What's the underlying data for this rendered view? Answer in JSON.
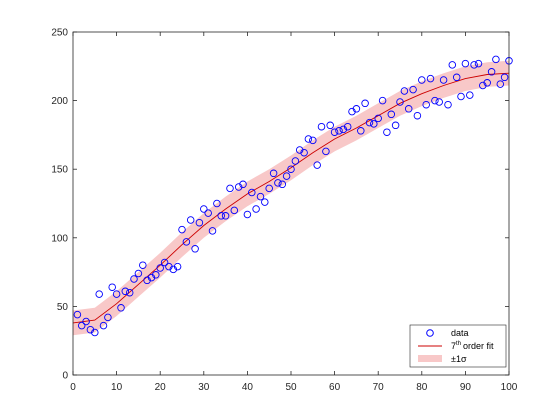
{
  "chart_data": {
    "type": "scatter",
    "xlim": [
      0,
      100
    ],
    "ylim": [
      0,
      250
    ],
    "x_ticks": [
      0,
      10,
      20,
      30,
      40,
      50,
      60,
      70,
      80,
      90,
      100
    ],
    "y_ticks": [
      0,
      50,
      100,
      150,
      200,
      250
    ],
    "grid": false,
    "legend_position": "bottom-right",
    "colors": {
      "data": "#0000ff",
      "fit": "#cc0000",
      "band": "#f8c8c8"
    },
    "series": [
      {
        "name": "data",
        "kind": "markers",
        "marker": "circle",
        "x": [
          1,
          2,
          3,
          4,
          5,
          6,
          7,
          8,
          9,
          10,
          11,
          12,
          13,
          14,
          15,
          16,
          17,
          18,
          19,
          20,
          21,
          22,
          23,
          24,
          25,
          26,
          27,
          28,
          29,
          30,
          31,
          32,
          33,
          34,
          35,
          36,
          37,
          38,
          39,
          40,
          41,
          42,
          43,
          44,
          45,
          46,
          47,
          48,
          49,
          50,
          51,
          52,
          53,
          54,
          55,
          56,
          57,
          58,
          59,
          60,
          61,
          62,
          63,
          64,
          65,
          66,
          67,
          68,
          69,
          70,
          71,
          72,
          73,
          74,
          75,
          76,
          77,
          78,
          79,
          80,
          81,
          82,
          83,
          84,
          85,
          86,
          87,
          88,
          89,
          90,
          91,
          92,
          93,
          94,
          95,
          96,
          97,
          98,
          99,
          100
        ],
        "y": [
          44,
          36,
          39,
          33,
          31,
          59,
          36,
          42,
          64,
          59,
          49,
          61,
          60,
          70,
          74,
          80,
          69,
          71,
          73,
          78,
          82,
          79,
          77,
          79,
          106,
          97,
          113,
          92,
          111,
          121,
          118,
          105,
          125,
          116,
          116,
          136,
          120,
          137,
          139,
          117,
          133,
          121,
          130,
          126,
          136,
          147,
          140,
          139,
          145,
          150,
          156,
          164,
          162,
          172,
          171,
          153,
          181,
          163,
          182,
          177,
          178,
          179,
          181,
          192,
          194,
          178,
          198,
          184,
          183,
          187,
          200,
          177,
          190,
          182,
          199,
          207,
          194,
          208,
          189,
          215,
          197,
          216,
          200,
          199,
          215,
          197,
          226,
          217,
          203,
          227,
          204,
          226,
          227,
          211,
          213,
          221,
          230,
          212,
          217,
          229
        ]
      },
      {
        "name": "order fit",
        "name_prefix": "7",
        "name_superscript": "th",
        "kind": "line",
        "x": [
          0,
          5,
          10,
          15,
          20,
          25,
          30,
          35,
          40,
          45,
          50,
          55,
          60,
          65,
          70,
          75,
          80,
          85,
          90,
          95,
          100
        ],
        "y": [
          38,
          40,
          52,
          66,
          80,
          95,
          109,
          121,
          132,
          141,
          151,
          162,
          172,
          180,
          189,
          198,
          205,
          211,
          216,
          219,
          220
        ]
      },
      {
        "name": "±1σ",
        "kind": "band",
        "half_width": 9
      }
    ]
  }
}
